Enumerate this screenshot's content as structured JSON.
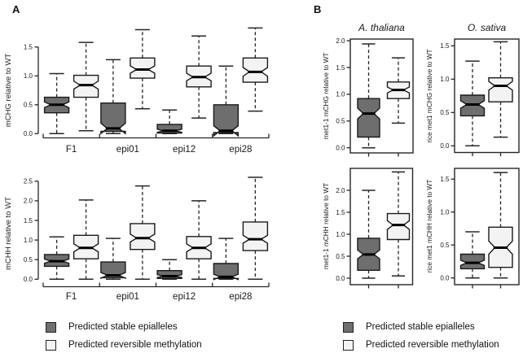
{
  "figure": {
    "panel_a_label": "A",
    "panel_b_label": "B"
  },
  "colors": {
    "stable_fill": "#6e6e6e",
    "reversible_fill": "#f3f3f3",
    "box_stroke": "#1a1a1a",
    "median": "#000000",
    "axis": "#262626",
    "text": "#1a1a1a"
  },
  "legends": {
    "left": {
      "items": [
        {
          "key": "stable",
          "label": "Predicted stable epialleles"
        },
        {
          "key": "reversible",
          "label": "Predicted reversible methylation"
        }
      ]
    },
    "right": {
      "items": [
        {
          "key": "stable",
          "label": "Predicted stable epialleles"
        },
        {
          "key": "reversible",
          "label": "Predicted reversible methylation"
        }
      ]
    }
  },
  "chart_data": [
    {
      "id": "a-mchg",
      "type": "box",
      "panel": "A",
      "ylabel": "mCHG relative to WT",
      "yticks": [
        0,
        0.5,
        1.0,
        1.5
      ],
      "ytick_labels": [
        "0.0",
        "0.5",
        "1.0",
        "1.5"
      ],
      "ylim": [
        0,
        1.9
      ],
      "categories": [
        "F1",
        "epi01",
        "epi12",
        "epi28"
      ],
      "series": [
        {
          "key": "stable",
          "name": "Predicted stable epialleles",
          "boxes": [
            [
              0,
              0.36,
              0.5,
              0.63,
              1.04
            ],
            [
              0,
              0.04,
              0.09,
              0.53,
              1.28
            ],
            [
              0,
              0.01,
              0.05,
              0.16,
              0.41
            ],
            [
              0,
              0.02,
              0.05,
              0.5,
              1.17
            ]
          ]
        },
        {
          "key": "reversible",
          "name": "Predicted reversible methylation",
          "boxes": [
            [
              0.05,
              0.63,
              0.84,
              1.01,
              1.58
            ],
            [
              0.43,
              0.96,
              1.11,
              1.31,
              1.8
            ],
            [
              0.27,
              0.81,
              0.98,
              1.17,
              1.69
            ],
            [
              0.39,
              0.89,
              1.07,
              1.31,
              1.83
            ]
          ]
        }
      ]
    },
    {
      "id": "a-mchh",
      "type": "box",
      "panel": "A",
      "ylabel": "mCHH relative to WT",
      "yticks": [
        0,
        0.5,
        1.0,
        1.5,
        2.0,
        2.5
      ],
      "ytick_labels": [
        "0.0",
        "0.5",
        "1.0",
        "1.5",
        "2.0",
        "2.5"
      ],
      "ylim": [
        0,
        2.6
      ],
      "categories": [
        "F1",
        "epi01",
        "epi12",
        "epi28"
      ],
      "series": [
        {
          "key": "stable",
          "name": "Predicted stable epialleles",
          "boxes": [
            [
              0,
              0.33,
              0.46,
              0.63,
              1.08
            ],
            [
              0,
              0.04,
              0.1,
              0.44,
              1.04
            ],
            [
              0,
              0.02,
              0.08,
              0.22,
              0.5
            ],
            [
              0,
              0.02,
              0.06,
              0.4,
              1.04
            ]
          ]
        },
        {
          "key": "reversible",
          "name": "Predicted reversible methylation",
          "boxes": [
            [
              0,
              0.52,
              0.8,
              1.12,
              2.02
            ],
            [
              0,
              0.76,
              1.05,
              1.42,
              2.38
            ],
            [
              0,
              0.52,
              0.8,
              1.09,
              2.0
            ],
            [
              0,
              0.73,
              1.02,
              1.46,
              2.6
            ]
          ]
        }
      ]
    },
    {
      "id": "b-at-mchg",
      "type": "box",
      "panel": "B",
      "title": "A. thaliana",
      "ylabel": "met1-1 mCHG relative to WT",
      "yticks": [
        0,
        0.5,
        1.0,
        1.5,
        2.0
      ],
      "ytick_labels": [
        "0.0",
        "0.5",
        "1.0",
        "1.5",
        "2.0"
      ],
      "ylim": [
        0,
        2.05
      ],
      "categories": [
        ""
      ],
      "series": [
        {
          "key": "stable",
          "name": "Predicted stable epialleles",
          "boxes": [
            [
              0,
              0.2,
              0.64,
              0.92,
              1.94
            ]
          ]
        },
        {
          "key": "reversible",
          "name": "Predicted reversible methylation",
          "boxes": [
            [
              0.46,
              0.92,
              1.08,
              1.23,
              1.68
            ]
          ]
        }
      ]
    },
    {
      "id": "b-os-mchg",
      "type": "box",
      "panel": "B",
      "title": "O. sativa",
      "ylabel": "rice met1 mCHG relative to WT",
      "yticks": [
        0,
        0.5,
        1.0,
        1.5
      ],
      "ytick_labels": [
        "0.0",
        "0.5",
        "1.0",
        "1.5"
      ],
      "ylim": [
        0,
        1.7
      ],
      "categories": [
        ""
      ],
      "series": [
        {
          "key": "stable",
          "name": "Predicted stable epialleles",
          "boxes": [
            [
              0,
              0.45,
              0.62,
              0.76,
              1.27
            ]
          ]
        },
        {
          "key": "reversible",
          "name": "Predicted reversible methylation",
          "boxes": [
            [
              0.13,
              0.66,
              0.9,
              1.02,
              1.56
            ]
          ]
        }
      ]
    },
    {
      "id": "b-at-mchh",
      "type": "box",
      "panel": "B",
      "ylabel": "met1-1 mCHH relative to WT",
      "yticks": [
        0,
        0.5,
        1.0,
        1.5,
        2.0
      ],
      "ytick_labels": [
        "0.0",
        "0.5",
        "1.0",
        "1.5",
        "2.0"
      ],
      "ylim": [
        0,
        2.5
      ],
      "categories": [
        ""
      ],
      "series": [
        {
          "key": "stable",
          "name": "Predicted stable epialleles",
          "boxes": [
            [
              0,
              0.18,
              0.54,
              0.91,
              2.0
            ]
          ]
        },
        {
          "key": "reversible",
          "name": "Predicted reversible methylation",
          "boxes": [
            [
              0.05,
              0.88,
              1.21,
              1.47,
              2.42
            ]
          ]
        }
      ]
    },
    {
      "id": "b-os-mchh",
      "type": "box",
      "panel": "B",
      "ylabel": "rice met1 mCHH relative to WT",
      "yticks": [
        0,
        0.5,
        1.0,
        1.5
      ],
      "ytick_labels": [
        "0.0",
        "0.5",
        "1.0",
        "1.5"
      ],
      "ylim": [
        0,
        1.66
      ],
      "categories": [
        ""
      ],
      "series": [
        {
          "key": "stable",
          "name": "Predicted stable epialleles",
          "boxes": [
            [
              0,
              0.14,
              0.23,
              0.36,
              0.7
            ]
          ]
        },
        {
          "key": "reversible",
          "name": "Predicted reversible methylation",
          "boxes": [
            [
              0,
              0.16,
              0.46,
              0.77,
              1.6
            ]
          ]
        }
      ]
    }
  ]
}
